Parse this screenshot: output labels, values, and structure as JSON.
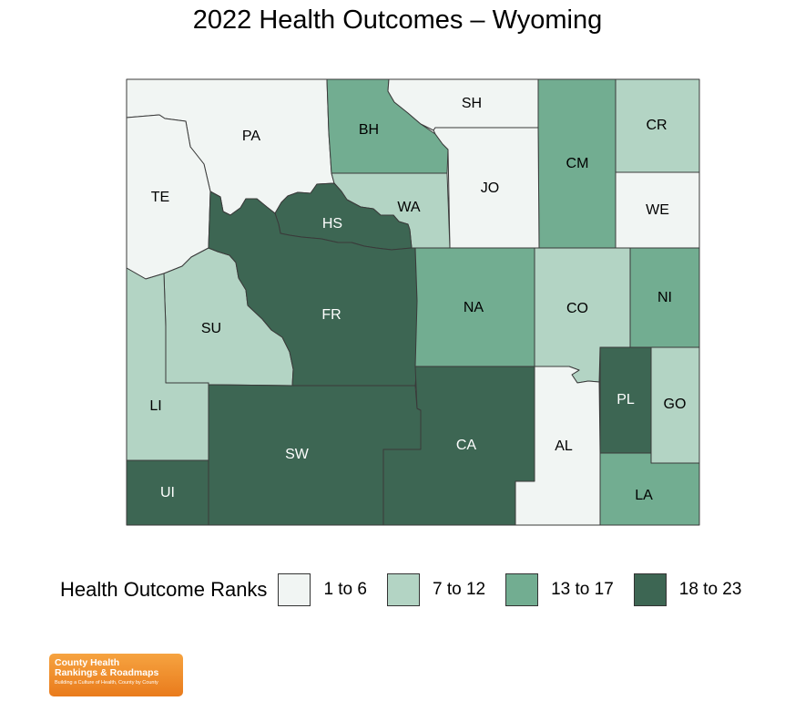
{
  "title": "2022 Health Outcomes – Wyoming",
  "legend": {
    "title": "Health Outcome Ranks",
    "bins": [
      {
        "label": "1 to 6",
        "color": "#f1f5f3"
      },
      {
        "label": "7 to 12",
        "color": "#b3d4c4"
      },
      {
        "label": "13 to 17",
        "color": "#72ad91"
      },
      {
        "label": "18 to 23",
        "color": "#3d6653"
      }
    ]
  },
  "counties": [
    {
      "abbr": "PA",
      "bin": 0
    },
    {
      "abbr": "BH",
      "bin": 2
    },
    {
      "abbr": "SH",
      "bin": 0
    },
    {
      "abbr": "CM",
      "bin": 2
    },
    {
      "abbr": "CR",
      "bin": 1
    },
    {
      "abbr": "TE",
      "bin": 0
    },
    {
      "abbr": "JO",
      "bin": 0
    },
    {
      "abbr": "WA",
      "bin": 1
    },
    {
      "abbr": "HS",
      "bin": 3
    },
    {
      "abbr": "WE",
      "bin": 0
    },
    {
      "abbr": "SU",
      "bin": 1
    },
    {
      "abbr": "FR",
      "bin": 3
    },
    {
      "abbr": "NA",
      "bin": 2
    },
    {
      "abbr": "CO",
      "bin": 1
    },
    {
      "abbr": "NI",
      "bin": 2
    },
    {
      "abbr": "LI",
      "bin": 1
    },
    {
      "abbr": "PL",
      "bin": 3
    },
    {
      "abbr": "GO",
      "bin": 1
    },
    {
      "abbr": "SW",
      "bin": 3
    },
    {
      "abbr": "CA",
      "bin": 3
    },
    {
      "abbr": "AL",
      "bin": 0
    },
    {
      "abbr": "UI",
      "bin": 3
    },
    {
      "abbr": "LA",
      "bin": 2
    }
  ],
  "logo": {
    "line1": "County Health",
    "line2": "Rankings & Roadmaps",
    "tagline": "Building a Culture of Health, County by County"
  }
}
